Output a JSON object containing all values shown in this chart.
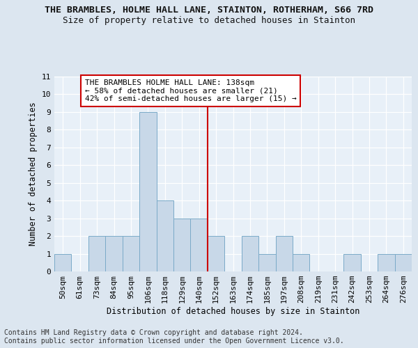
{
  "title_line1": "THE BRAMBLES, HOLME HALL LANE, STAINTON, ROTHERHAM, S66 7RD",
  "title_line2": "Size of property relative to detached houses in Stainton",
  "xlabel": "Distribution of detached houses by size in Stainton",
  "ylabel": "Number of detached properties",
  "categories": [
    "50sqm",
    "61sqm",
    "73sqm",
    "84sqm",
    "95sqm",
    "106sqm",
    "118sqm",
    "129sqm",
    "140sqm",
    "152sqm",
    "163sqm",
    "174sqm",
    "185sqm",
    "197sqm",
    "208sqm",
    "219sqm",
    "231sqm",
    "242sqm",
    "253sqm",
    "264sqm",
    "276sqm"
  ],
  "values": [
    1,
    0,
    2,
    2,
    2,
    9,
    4,
    3,
    3,
    2,
    0,
    2,
    1,
    2,
    1,
    0,
    0,
    1,
    0,
    1,
    1
  ],
  "bar_color": "#c8d8e8",
  "bar_edge_color": "#7aaac8",
  "vline_x_index": 8,
  "vline_color": "#cc0000",
  "annotation_text": "THE BRAMBLES HOLME HALL LANE: 138sqm\n← 58% of detached houses are smaller (21)\n42% of semi-detached houses are larger (15) →",
  "annotation_box_color": "#ffffff",
  "annotation_box_edge": "#cc0000",
  "ylim_max": 11,
  "yticks": [
    0,
    1,
    2,
    3,
    4,
    5,
    6,
    7,
    8,
    9,
    10,
    11
  ],
  "footnote": "Contains HM Land Registry data © Crown copyright and database right 2024.\nContains public sector information licensed under the Open Government Licence v3.0.",
  "bg_color": "#dce6f0",
  "plot_bg_color": "#e8f0f8",
  "grid_color": "#ffffff",
  "title_fontsize": 9.5,
  "subtitle_fontsize": 9,
  "axis_label_fontsize": 8.5,
  "tick_fontsize": 8,
  "annotation_fontsize": 8,
  "footnote_fontsize": 7
}
